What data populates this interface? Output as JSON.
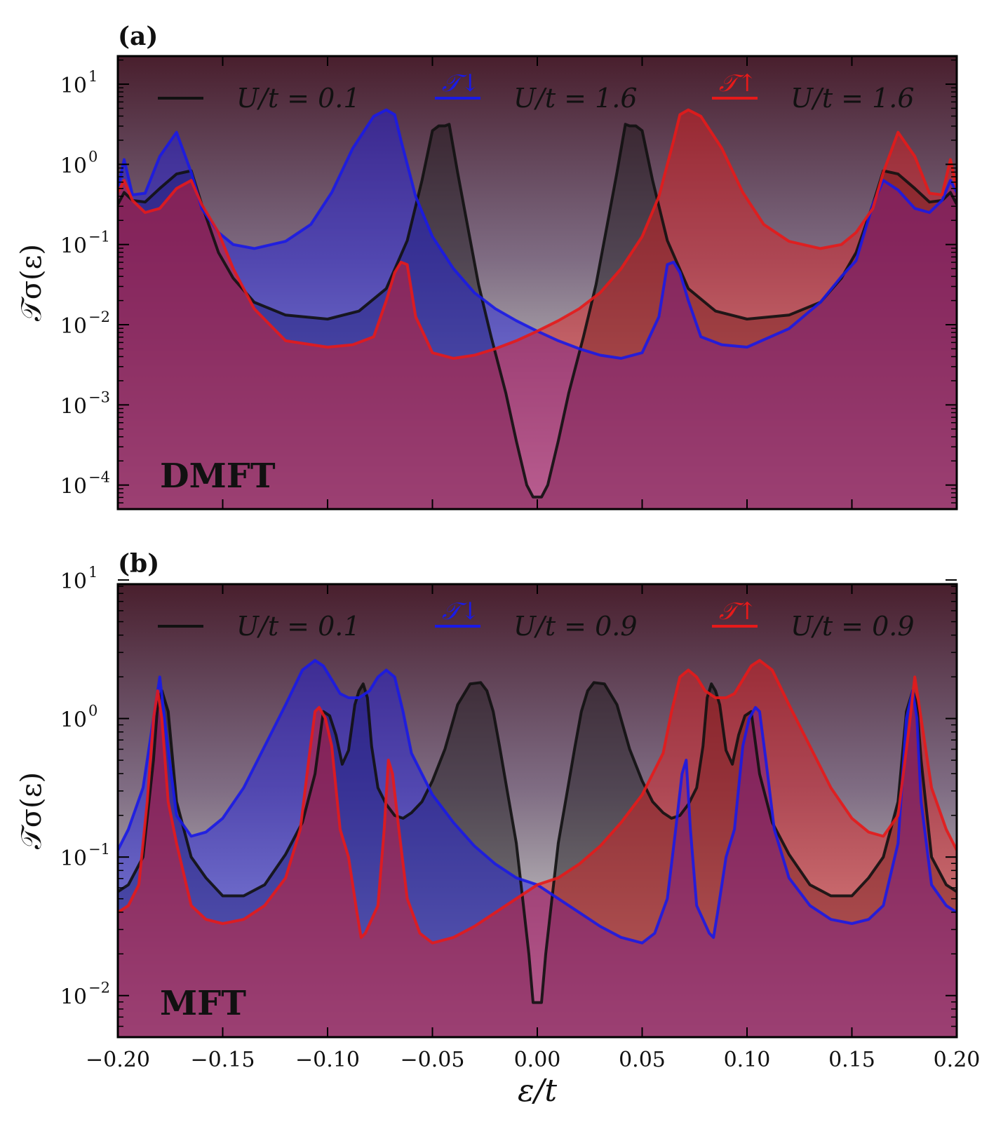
{
  "chart_data": [
    {
      "type": "line",
      "panel": "(a)",
      "method": "DMFT",
      "xlabel": "ε/t",
      "ylabel": "𝒯σ(ε)",
      "xlim": [
        -0.2,
        0.2
      ],
      "ylim_log10": [
        -4.3,
        1.35
      ],
      "yscale": "log",
      "x_ticks": [
        -0.2,
        -0.15,
        -0.1,
        -0.05,
        0.0,
        0.05,
        0.1,
        0.15,
        0.2
      ],
      "x_tick_labels": [],
      "y_ticks_log10": [
        -4,
        -3,
        -2,
        -1,
        0,
        1
      ],
      "y_tick_labels": [
        {
          "base": "10",
          "exp": "−4"
        },
        {
          "base": "10",
          "exp": "−3"
        },
        {
          "base": "10",
          "exp": "−2"
        },
        {
          "base": "10",
          "exp": "−1"
        },
        {
          "base": "10",
          "exp": "0"
        },
        {
          "base": "10",
          "exp": "1"
        }
      ],
      "legend": [
        {
          "symbol": "",
          "label": "U/t = 0.1",
          "color": "#111111"
        },
        {
          "symbol": "𝒯↓",
          "label": "U/t = 1.6",
          "color": "#1a1ae6"
        },
        {
          "symbol": "𝒯↑",
          "label": "U/t = 1.6",
          "color": "#e61a1a"
        }
      ],
      "series": [
        {
          "name": "U/t = 0.1",
          "color": "#111111",
          "x": [
            -0.2,
            -0.197,
            -0.193,
            -0.187,
            -0.18,
            -0.172,
            -0.165,
            -0.16,
            -0.152,
            -0.145,
            -0.135,
            -0.12,
            -0.1,
            -0.085,
            -0.072,
            -0.062,
            -0.055,
            -0.05,
            -0.047,
            -0.044,
            -0.042,
            -0.038,
            -0.033,
            -0.028,
            -0.022,
            -0.015,
            -0.01,
            -0.005,
            -0.002,
            0.0,
            0.002,
            0.005,
            0.01,
            0.015,
            0.022,
            0.028,
            0.033,
            0.038,
            0.042,
            0.044,
            0.047,
            0.05,
            0.055,
            0.062,
            0.072,
            0.085,
            0.1,
            0.12,
            0.135,
            0.145,
            0.152,
            0.16,
            0.165,
            0.172,
            0.18,
            0.187,
            0.193,
            0.197,
            0.2
          ],
          "log10_y": [
            -0.5,
            -0.35,
            -0.45,
            -0.47,
            -0.3,
            -0.12,
            -0.08,
            -0.5,
            -1.1,
            -1.42,
            -1.72,
            -1.88,
            -1.93,
            -1.83,
            -1.55,
            -0.95,
            -0.2,
            0.42,
            0.48,
            0.48,
            0.5,
            -0.1,
            -0.8,
            -1.5,
            -2.15,
            -2.85,
            -3.45,
            -4.0,
            -4.15,
            -4.15,
            -4.15,
            -4.0,
            -3.45,
            -2.85,
            -2.15,
            -1.5,
            -0.8,
            -0.1,
            0.5,
            0.48,
            0.48,
            0.42,
            -0.2,
            -0.95,
            -1.55,
            -1.83,
            -1.93,
            -1.88,
            -1.72,
            -1.42,
            -1.1,
            -0.5,
            -0.08,
            -0.12,
            -0.3,
            -0.47,
            -0.45,
            -0.35,
            -0.5
          ]
        },
        {
          "name": "𝒯↓ U/t = 1.6",
          "color": "#1a1ae6",
          "x": [
            -0.2,
            -0.197,
            -0.193,
            -0.187,
            -0.18,
            -0.172,
            -0.165,
            -0.16,
            -0.152,
            -0.145,
            -0.135,
            -0.12,
            -0.108,
            -0.098,
            -0.088,
            -0.078,
            -0.072,
            -0.068,
            -0.065,
            -0.058,
            -0.05,
            -0.04,
            -0.03,
            -0.02,
            -0.01,
            0.0,
            0.01,
            0.02,
            0.03,
            0.04,
            0.05,
            0.058,
            0.062,
            0.065,
            0.068,
            0.072,
            0.078,
            0.088,
            0.1,
            0.12,
            0.135,
            0.145,
            0.152,
            0.16,
            0.165,
            0.172,
            0.18,
            0.187,
            0.193,
            0.197,
            0.2
          ],
          "log10_y": [
            -0.3,
            0.06,
            -0.38,
            -0.36,
            0.1,
            0.4,
            -0.1,
            -0.55,
            -0.85,
            -1.0,
            -1.05,
            -0.96,
            -0.75,
            -0.35,
            0.2,
            0.6,
            0.68,
            0.62,
            0.3,
            -0.4,
            -0.9,
            -1.3,
            -1.6,
            -1.8,
            -1.95,
            -2.08,
            -2.2,
            -2.3,
            -2.38,
            -2.42,
            -2.35,
            -1.9,
            -1.25,
            -1.22,
            -1.35,
            -1.7,
            -2.15,
            -2.25,
            -2.28,
            -2.05,
            -1.72,
            -1.4,
            -1.2,
            -0.5,
            -0.2,
            -0.32,
            -0.55,
            -0.6,
            -0.45,
            -0.2,
            -0.35
          ]
        },
        {
          "name": "𝒯↑ U/t = 1.6",
          "color": "#e61a1a",
          "x": [
            -0.2,
            -0.197,
            -0.193,
            -0.187,
            -0.18,
            -0.172,
            -0.165,
            -0.16,
            -0.152,
            -0.145,
            -0.135,
            -0.12,
            -0.1,
            -0.088,
            -0.078,
            -0.072,
            -0.068,
            -0.065,
            -0.062,
            -0.058,
            -0.05,
            -0.04,
            -0.03,
            -0.02,
            -0.01,
            0.0,
            0.01,
            0.02,
            0.03,
            0.04,
            0.05,
            0.058,
            0.065,
            0.068,
            0.072,
            0.078,
            0.088,
            0.098,
            0.108,
            0.12,
            0.135,
            0.145,
            0.152,
            0.16,
            0.165,
            0.172,
            0.18,
            0.187,
            0.193,
            0.197,
            0.2
          ],
          "log10_y": [
            -0.35,
            -0.2,
            -0.45,
            -0.6,
            -0.55,
            -0.3,
            -0.2,
            -0.5,
            -0.85,
            -1.3,
            -1.8,
            -2.2,
            -2.28,
            -2.25,
            -2.15,
            -1.7,
            -1.35,
            -1.22,
            -1.25,
            -1.9,
            -2.35,
            -2.42,
            -2.38,
            -2.3,
            -2.2,
            -2.08,
            -1.95,
            -1.8,
            -1.6,
            -1.3,
            -0.9,
            -0.4,
            0.3,
            0.62,
            0.68,
            0.6,
            0.2,
            -0.35,
            -0.75,
            -0.96,
            -1.05,
            -1.0,
            -0.85,
            -0.55,
            -0.1,
            0.4,
            0.1,
            -0.36,
            -0.38,
            0.06,
            -0.3
          ]
        }
      ]
    },
    {
      "type": "line",
      "panel": "(b)",
      "method": "MFT",
      "xlabel": "ε/t",
      "ylabel": "𝒯σ(ε)",
      "xlim": [
        -0.2,
        0.2
      ],
      "ylim_log10": [
        -2.3,
        0.97
      ],
      "yscale": "log",
      "x_ticks": [
        -0.2,
        -0.15,
        -0.1,
        -0.05,
        0.0,
        0.05,
        0.1,
        0.15,
        0.2
      ],
      "x_tick_labels": [
        "−0.20",
        "−0.15",
        "−0.10",
        "−0.05",
        "0.00",
        "0.05",
        "0.10",
        "0.15",
        "0.20"
      ],
      "y_ticks_log10": [
        -2,
        -1,
        0,
        1
      ],
      "y_tick_labels": [
        {
          "base": "10",
          "exp": "−2"
        },
        {
          "base": "10",
          "exp": "−1"
        },
        {
          "base": "10",
          "exp": "0"
        },
        {
          "base": "10",
          "exp": "1"
        }
      ],
      "legend": [
        {
          "symbol": "",
          "label": "U/t = 0.1",
          "color": "#111111"
        },
        {
          "symbol": "𝒯↓",
          "label": "U/t = 0.9",
          "color": "#1a1ae6"
        },
        {
          "symbol": "𝒯↑",
          "label": "U/t = 0.9",
          "color": "#e61a1a"
        }
      ],
      "series": [
        {
          "name": "U/t = 0.1",
          "color": "#111111",
          "x": [
            -0.2,
            -0.195,
            -0.188,
            -0.183,
            -0.181,
            -0.179,
            -0.176,
            -0.172,
            -0.165,
            -0.158,
            -0.15,
            -0.14,
            -0.13,
            -0.12,
            -0.112,
            -0.106,
            -0.102,
            -0.099,
            -0.096,
            -0.093,
            -0.09,
            -0.087,
            -0.085,
            -0.083,
            -0.081,
            -0.079,
            -0.076,
            -0.072,
            -0.068,
            -0.064,
            -0.06,
            -0.055,
            -0.05,
            -0.044,
            -0.038,
            -0.032,
            -0.027,
            -0.024,
            -0.021,
            -0.018,
            -0.014,
            -0.01,
            -0.007,
            -0.004,
            -0.002,
            0.0,
            0.002,
            0.004,
            0.007,
            0.01,
            0.014,
            0.018,
            0.021,
            0.024,
            0.027,
            0.032,
            0.038,
            0.044,
            0.05,
            0.055,
            0.06,
            0.064,
            0.068,
            0.072,
            0.076,
            0.079,
            0.081,
            0.083,
            0.085,
            0.087,
            0.09,
            0.093,
            0.096,
            0.099,
            0.102,
            0.106,
            0.112,
            0.12,
            0.13,
            0.14,
            0.15,
            0.158,
            0.165,
            0.172,
            0.176,
            0.179,
            0.181,
            0.183,
            0.188,
            0.195,
            0.2
          ],
          "log10_y": [
            -1.25,
            -1.2,
            -1.0,
            -0.3,
            0.1,
            0.2,
            0.05,
            -0.6,
            -1.0,
            -1.15,
            -1.28,
            -1.28,
            -1.2,
            -0.98,
            -0.75,
            -0.4,
            0.05,
            0.02,
            -0.12,
            -0.33,
            -0.23,
            0.1,
            0.2,
            0.25,
            0.15,
            -0.2,
            -0.5,
            -0.62,
            -0.7,
            -0.72,
            -0.68,
            -0.6,
            -0.45,
            -0.22,
            0.1,
            0.25,
            0.26,
            0.2,
            0.05,
            -0.2,
            -0.55,
            -0.9,
            -1.3,
            -1.7,
            -2.05,
            -2.05,
            -2.05,
            -1.7,
            -1.3,
            -0.9,
            -0.55,
            -0.2,
            0.05,
            0.2,
            0.26,
            0.25,
            0.1,
            -0.22,
            -0.45,
            -0.6,
            -0.68,
            -0.72,
            -0.7,
            -0.62,
            -0.5,
            -0.2,
            0.15,
            0.25,
            0.2,
            0.1,
            -0.23,
            -0.33,
            -0.12,
            0.02,
            0.05,
            -0.4,
            -0.75,
            -0.98,
            -1.2,
            -1.28,
            -1.28,
            -1.15,
            -1.0,
            -0.6,
            0.05,
            0.2,
            0.1,
            -0.3,
            -1.0,
            -1.2,
            -1.25
          ]
        },
        {
          "name": "𝒯↓ U/t = 0.9",
          "color": "#1a1ae6",
          "x": [
            -0.2,
            -0.195,
            -0.188,
            -0.183,
            -0.18,
            -0.177,
            -0.172,
            -0.165,
            -0.158,
            -0.15,
            -0.14,
            -0.13,
            -0.12,
            -0.112,
            -0.106,
            -0.102,
            -0.098,
            -0.094,
            -0.09,
            -0.085,
            -0.08,
            -0.076,
            -0.072,
            -0.068,
            -0.064,
            -0.06,
            -0.05,
            -0.04,
            -0.03,
            -0.02,
            -0.01,
            0.0,
            0.01,
            0.02,
            0.03,
            0.04,
            0.05,
            0.056,
            0.062,
            0.066,
            0.069,
            0.071,
            0.073,
            0.076,
            0.079,
            0.082,
            0.084,
            0.086,
            0.09,
            0.094,
            0.098,
            0.101,
            0.104,
            0.106,
            0.109,
            0.113,
            0.12,
            0.13,
            0.14,
            0.15,
            0.158,
            0.165,
            0.172,
            0.176,
            0.179,
            0.181,
            0.183,
            0.188,
            0.195,
            0.2
          ],
          "log10_y": [
            -0.95,
            -0.8,
            -0.5,
            0.0,
            0.3,
            -0.1,
            -0.7,
            -0.85,
            -0.82,
            -0.72,
            -0.5,
            -0.2,
            0.1,
            0.35,
            0.42,
            0.38,
            0.28,
            0.18,
            0.15,
            0.15,
            0.2,
            0.3,
            0.35,
            0.3,
            0.05,
            -0.25,
            -0.55,
            -0.75,
            -0.92,
            -1.05,
            -1.15,
            -1.2,
            -1.3,
            -1.4,
            -1.5,
            -1.58,
            -1.62,
            -1.55,
            -1.3,
            -0.8,
            -0.4,
            -0.3,
            -0.8,
            -1.35,
            -1.45,
            -1.55,
            -1.58,
            -1.4,
            -1.0,
            -0.8,
            -0.2,
            0.0,
            0.08,
            0.05,
            -0.3,
            -0.8,
            -1.15,
            -1.35,
            -1.45,
            -1.48,
            -1.45,
            -1.35,
            -0.9,
            0.0,
            0.2,
            0.0,
            -0.6,
            -1.2,
            -1.35,
            -1.4
          ]
        },
        {
          "name": "𝒯↑ U/t = 0.9",
          "color": "#e61a1a",
          "x": [
            -0.2,
            -0.195,
            -0.19,
            -0.186,
            -0.183,
            -0.181,
            -0.179,
            -0.176,
            -0.172,
            -0.165,
            -0.158,
            -0.15,
            -0.14,
            -0.13,
            -0.12,
            -0.113,
            -0.109,
            -0.106,
            -0.104,
            -0.101,
            -0.098,
            -0.094,
            -0.09,
            -0.086,
            -0.084,
            -0.082,
            -0.079,
            -0.076,
            -0.073,
            -0.071,
            -0.069,
            -0.066,
            -0.062,
            -0.056,
            -0.05,
            -0.04,
            -0.03,
            -0.02,
            -0.01,
            0.0,
            0.01,
            0.02,
            0.03,
            0.04,
            0.05,
            0.06,
            0.064,
            0.068,
            0.072,
            0.076,
            0.08,
            0.085,
            0.09,
            0.094,
            0.098,
            0.102,
            0.106,
            0.112,
            0.12,
            0.13,
            0.14,
            0.15,
            0.158,
            0.165,
            0.172,
            0.177,
            0.18,
            0.183,
            0.188,
            0.195,
            0.2
          ],
          "log10_y": [
            -1.4,
            -1.35,
            -1.2,
            -0.6,
            0.0,
            0.2,
            0.0,
            -0.6,
            -0.9,
            -1.35,
            -1.45,
            -1.48,
            -1.45,
            -1.35,
            -1.15,
            -0.8,
            -0.3,
            0.05,
            0.08,
            0.0,
            -0.2,
            -0.8,
            -1.0,
            -1.4,
            -1.58,
            -1.55,
            -1.45,
            -1.35,
            -0.8,
            -0.3,
            -0.4,
            -0.8,
            -1.3,
            -1.55,
            -1.62,
            -1.58,
            -1.5,
            -1.4,
            -1.3,
            -1.2,
            -1.15,
            -1.05,
            -0.92,
            -0.75,
            -0.55,
            -0.25,
            0.05,
            0.3,
            0.35,
            0.3,
            0.2,
            0.15,
            0.15,
            0.18,
            0.28,
            0.38,
            0.42,
            0.35,
            0.1,
            -0.2,
            -0.5,
            -0.72,
            -0.82,
            -0.85,
            -0.7,
            -0.1,
            0.3,
            0.0,
            -0.5,
            -0.8,
            -0.95
          ]
        }
      ]
    }
  ]
}
